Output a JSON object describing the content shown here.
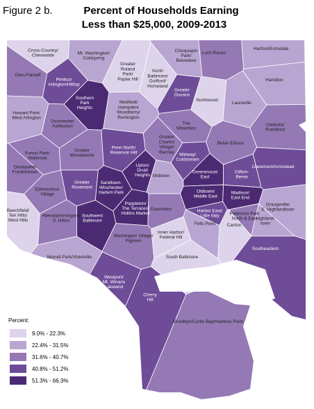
{
  "header": {
    "figure": "Figure 2 b.",
    "title_line1": "Percent of Households Earning",
    "title_line2": "Less than $25,000, 2009-2013"
  },
  "legend": {
    "title": "Percent:",
    "items": [
      {
        "label": "9.0% - 22.3%",
        "color": "#ddd3ea"
      },
      {
        "label": "22.4% - 31.5%",
        "color": "#b9a5d1"
      },
      {
        "label": "31.6% - 40.7%",
        "color": "#9479b5"
      },
      {
        "label": "40.8% - 51.2%",
        "color": "#6e4c98"
      },
      {
        "label": "51.3% - 66.3%",
        "color": "#4b2a73"
      }
    ]
  },
  "map": {
    "areas": [
      {
        "label": [
          "Cross-Country/",
          "Cheswolde"
        ],
        "class": 0
      },
      {
        "label": [
          "Mt. Washington/",
          "Coldspring"
        ],
        "class": 1
      },
      {
        "label": [
          "Greater",
          "Roland",
          "Park/",
          "Poplar Hill"
        ],
        "class": 0
      },
      {
        "label": [
          "North",
          "Baltimore/",
          "Guilford/",
          "Homeland"
        ],
        "class": 0
      },
      {
        "label": [
          "Chinquapin",
          "Park/",
          "Belvedere"
        ],
        "class": 1
      },
      {
        "label": [
          "Loch Raven"
        ],
        "class": 2
      },
      {
        "label": [
          "Harford/Echodale"
        ],
        "class": 1
      },
      {
        "label": [
          "Glen-Falstaff"
        ],
        "class": 2
      },
      {
        "label": [
          "Pimlico/",
          "Arlington/Hilltop"
        ],
        "class": 3
      },
      {
        "label": [
          "Hamilton"
        ],
        "class": 1
      },
      {
        "label": [
          "Northwood"
        ],
        "class": 0
      },
      {
        "label": [
          "Lauraville"
        ],
        "class": 1
      },
      {
        "label": [
          "Greater",
          "Govans"
        ],
        "class": 3
      },
      {
        "label": [
          "Southern",
          "Park",
          "Heights"
        ],
        "class": 4
      },
      {
        "label": [
          "Howard Park/",
          "West Arlington"
        ],
        "class": 1
      },
      {
        "label": [
          "Dorchester/",
          "Ashburton"
        ],
        "class": 2
      },
      {
        "label": [
          "Medfield/",
          "Hampden/",
          "Woodberry/",
          "Remington"
        ],
        "class": 1
      },
      {
        "label": [
          "The",
          "Waverlies"
        ],
        "class": 2
      },
      {
        "label": [
          "Cedonia/",
          "Frankford"
        ],
        "class": 2
      },
      {
        "label": [
          "Belair-Edison"
        ],
        "class": 2
      },
      {
        "label": [
          "Greater",
          "Charles",
          "Village/",
          "Barclay"
        ],
        "class": 2
      },
      {
        "label": [
          "Forest Park/",
          "Walbrook"
        ],
        "class": 2
      },
      {
        "label": [
          "Greater",
          "Mondawmin"
        ],
        "class": 2
      },
      {
        "label": [
          "Penn North/",
          "Reservoir Hill"
        ],
        "class": 3
      },
      {
        "label": [
          "Midway/",
          "Coldstream"
        ],
        "class": 3
      },
      {
        "label": [
          "Dickeyville/",
          "Franklintown"
        ],
        "class": 2
      },
      {
        "label": [
          "Claremont/Armistead"
        ],
        "class": 3
      },
      {
        "label": [
          "Greenmount",
          "East"
        ],
        "class": 4
      },
      {
        "label": [
          "Clifton-",
          "Berea"
        ],
        "class": 3
      },
      {
        "label": [
          "Upton/",
          "Druid",
          "Heights"
        ],
        "class": 4
      },
      {
        "label": [
          "Midtown"
        ],
        "class": 1
      },
      {
        "label": [
          "Greater",
          "Rosemont"
        ],
        "class": 3
      },
      {
        "label": [
          "Sandtown-",
          "Winchester/",
          "Harlem Park"
        ],
        "class": 4
      },
      {
        "label": [
          "Edmondson",
          "Village"
        ],
        "class": 2
      },
      {
        "label": [
          "Oldtown/",
          "Middle East"
        ],
        "class": 4
      },
      {
        "label": [
          "Madison/",
          "East End"
        ],
        "class": 4
      },
      {
        "label": [
          "Orangeville/",
          "E. Highlandtown"
        ],
        "class": 1
      },
      {
        "label": [
          "Beechfield/",
          "Ten Hills/",
          "West Hills"
        ],
        "class": 0
      },
      {
        "label": [
          "Allendale/Irvington/",
          "S. Hilton"
        ],
        "class": 2
      },
      {
        "label": [
          "Poppleton/",
          "The Terraces/",
          "Hollins Market"
        ],
        "class": 4
      },
      {
        "label": [
          "Downtown"
        ],
        "class": 2
      },
      {
        "label": [
          "Harbor East/",
          "Little Italy"
        ],
        "class": 3
      },
      {
        "label": [
          "Patterson Park",
          "North & East"
        ],
        "class": 2
      },
      {
        "label": [
          "Southwest",
          "Baltimore"
        ],
        "class": 4
      },
      {
        "label": [
          "Fells Point"
        ],
        "class": 1
      },
      {
        "label": [
          "Canton"
        ],
        "class": 0
      },
      {
        "label": [
          "Highland-",
          "town"
        ],
        "class": 1
      },
      {
        "label": [
          "Washington Village/",
          "Pigtown"
        ],
        "class": 2
      },
      {
        "label": [
          "Inner Harbor/",
          "Federal Hill"
        ],
        "class": 0
      },
      {
        "label": [
          "Morrell Park/Violetville"
        ],
        "class": 1
      },
      {
        "label": [
          "South Baltimore"
        ],
        "class": 0
      },
      {
        "label": [
          "Southeastern"
        ],
        "class": 3
      },
      {
        "label": [
          "Westport/",
          "Mt. Winans",
          "Lakeland"
        ],
        "class": 3
      },
      {
        "label": [
          "Cherry",
          "Hill"
        ],
        "class": 3
      },
      {
        "label": [
          "Brooklyn/Curtis Bay/Hawkins Point"
        ],
        "class": 2
      }
    ]
  }
}
